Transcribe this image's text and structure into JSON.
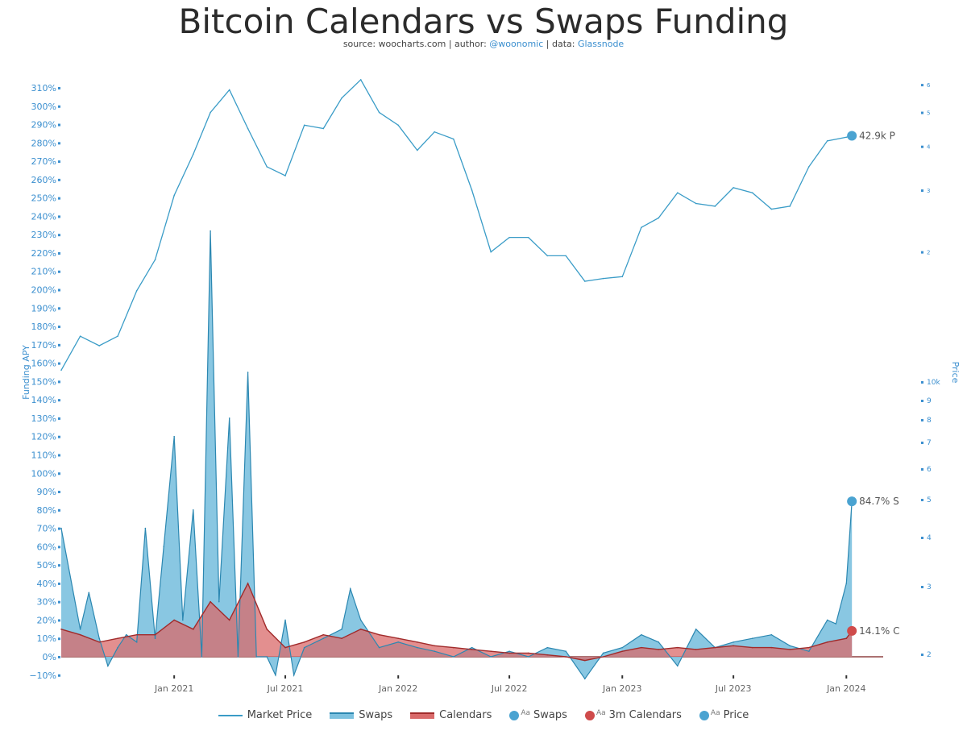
{
  "header": {
    "title": "Bitcoin Calendars vs Swaps Funding",
    "source_prefix": "source: woocharts.com | author: ",
    "author": "@woonomic",
    "data_prefix": " | data: ",
    "data_source": "Glassnode"
  },
  "colors": {
    "price": "#3a9cc7",
    "swaps_fill": "#7cc1df",
    "swaps_line": "#2b87b1",
    "calendars_fill": "#d96a6a",
    "calendars_line": "#a12b2b",
    "overlap": "#9a6a78",
    "axis_text": "#3b8fcf"
  },
  "chart_data": {
    "type": "line",
    "title": "Bitcoin Calendars vs Swaps Funding",
    "ylabel_left": "Funding APY",
    "ylabel_right": "Price",
    "x_ticks": [
      "Jan 2021",
      "Jul 2021",
      "Jan 2022",
      "Jul 2022",
      "Jan 2023",
      "Jul 2023",
      "Jan 2024"
    ],
    "x_tick_dates": [
      "2021-01-01",
      "2021-07-01",
      "2022-01-01",
      "2022-07-01",
      "2023-01-01",
      "2023-07-01",
      "2024-01-01"
    ],
    "x_range": [
      "2020-07-01",
      "2024-03-01"
    ],
    "left_axis_ticks": [
      "310%",
      "300%",
      "290%",
      "280%",
      "270%",
      "260%",
      "250%",
      "240%",
      "230%",
      "220%",
      "210%",
      "200%",
      "190%",
      "180%",
      "170%",
      "160%",
      "150%",
      "140%",
      "130%",
      "120%",
      "110%",
      "100%",
      "90%",
      "80%",
      "70%",
      "60%",
      "50%",
      "40%",
      "30%",
      "20%",
      "10%",
      "0%",
      "−10%"
    ],
    "left_ylim": [
      -10,
      314
    ],
    "right_axis_upper_ticks": [
      "6",
      "5",
      "4",
      "3",
      "2"
    ],
    "right_axis_lower_ticks": [
      "10k",
      "9",
      "8",
      "7",
      "6",
      "5",
      "4",
      "3",
      "2"
    ],
    "grid": false,
    "legend_position": "bottom",
    "legend": [
      "Market Price",
      "Swaps",
      "Calendars",
      "Swaps",
      "3m Calendars",
      "Price"
    ],
    "annotations": {
      "price_last": "42.9k P",
      "swaps_last": "84.7% S",
      "calendars_last": "14.1% C"
    },
    "series": [
      {
        "name": "Market Price",
        "kind": "line",
        "axis": "right-log",
        "x": [
          "2020-07-01",
          "2020-08-01",
          "2020-09-01",
          "2020-10-01",
          "2020-11-01",
          "2020-12-01",
          "2021-01-01",
          "2021-02-01",
          "2021-03-01",
          "2021-04-01",
          "2021-05-01",
          "2021-06-01",
          "2021-07-01",
          "2021-08-01",
          "2021-09-01",
          "2021-10-01",
          "2021-11-01",
          "2021-12-01",
          "2022-01-01",
          "2022-02-01",
          "2022-03-01",
          "2022-04-01",
          "2022-05-01",
          "2022-06-01",
          "2022-07-01",
          "2022-08-01",
          "2022-09-01",
          "2022-10-01",
          "2022-11-01",
          "2022-12-01",
          "2023-01-01",
          "2023-02-01",
          "2023-03-01",
          "2023-04-01",
          "2023-05-01",
          "2023-06-01",
          "2023-07-01",
          "2023-08-01",
          "2023-09-01",
          "2023-10-01",
          "2023-11-01",
          "2023-12-01",
          "2024-01-01",
          "2024-01-10"
        ],
        "values": [
          9200,
          11500,
          10800,
          11500,
          15500,
          19000,
          29000,
          38000,
          50000,
          58000,
          45000,
          35000,
          33000,
          46000,
          45000,
          55000,
          62000,
          50000,
          46000,
          39000,
          44000,
          42000,
          30000,
          20000,
          22000,
          22000,
          19500,
          19500,
          16500,
          16800,
          17000,
          23500,
          25000,
          29500,
          27500,
          27000,
          30500,
          29500,
          26500,
          27000,
          35000,
          41500,
          42500,
          42900
        ]
      },
      {
        "name": "Swaps",
        "kind": "area",
        "axis": "left",
        "x": [
          "2020-07-01",
          "2020-08-01",
          "2020-08-15",
          "2020-09-01",
          "2020-09-15",
          "2020-10-01",
          "2020-10-15",
          "2020-11-01",
          "2020-11-15",
          "2020-12-01",
          "2020-12-15",
          "2021-01-01",
          "2021-01-15",
          "2021-02-01",
          "2021-02-15",
          "2021-03-01",
          "2021-03-15",
          "2021-04-01",
          "2021-04-15",
          "2021-05-01",
          "2021-05-15",
          "2021-06-01",
          "2021-06-15",
          "2021-07-01",
          "2021-07-15",
          "2021-08-01",
          "2021-09-01",
          "2021-10-01",
          "2021-10-15",
          "2021-11-01",
          "2021-12-01",
          "2022-01-01",
          "2022-02-01",
          "2022-03-01",
          "2022-04-01",
          "2022-05-01",
          "2022-06-01",
          "2022-07-01",
          "2022-08-01",
          "2022-09-01",
          "2022-10-01",
          "2022-11-01",
          "2022-12-01",
          "2023-01-01",
          "2023-02-01",
          "2023-03-01",
          "2023-04-01",
          "2023-05-01",
          "2023-06-01",
          "2023-07-01",
          "2023-08-01",
          "2023-09-01",
          "2023-10-01",
          "2023-11-01",
          "2023-12-01",
          "2023-12-15",
          "2024-01-01",
          "2024-01-10"
        ],
        "values": [
          70,
          15,
          35,
          10,
          -5,
          5,
          12,
          8,
          70,
          10,
          60,
          120,
          20,
          80,
          0,
          232,
          30,
          130,
          0,
          155,
          0,
          0,
          -10,
          20,
          -10,
          5,
          10,
          15,
          37,
          20,
          5,
          8,
          5,
          3,
          0,
          5,
          0,
          3,
          0,
          5,
          3,
          -12,
          2,
          5,
          12,
          8,
          -5,
          15,
          5,
          8,
          10,
          12,
          6,
          3,
          20,
          18,
          40,
          84.7
        ]
      },
      {
        "name": "Calendars",
        "kind": "area",
        "axis": "left",
        "x": [
          "2020-07-01",
          "2020-08-01",
          "2020-09-01",
          "2020-10-01",
          "2020-11-01",
          "2020-12-01",
          "2021-01-01",
          "2021-02-01",
          "2021-03-01",
          "2021-04-01",
          "2021-05-01",
          "2021-06-01",
          "2021-07-01",
          "2021-08-01",
          "2021-09-01",
          "2021-10-01",
          "2021-11-01",
          "2021-12-01",
          "2022-01-01",
          "2022-02-01",
          "2022-03-01",
          "2022-04-01",
          "2022-05-01",
          "2022-06-01",
          "2022-07-01",
          "2022-08-01",
          "2022-09-01",
          "2022-10-01",
          "2022-11-01",
          "2022-12-01",
          "2023-01-01",
          "2023-02-01",
          "2023-03-01",
          "2023-04-01",
          "2023-05-01",
          "2023-06-01",
          "2023-07-01",
          "2023-08-01",
          "2023-09-01",
          "2023-10-01",
          "2023-11-01",
          "2023-12-01",
          "2024-01-01",
          "2024-01-10"
        ],
        "values": [
          15,
          12,
          8,
          10,
          12,
          12,
          20,
          15,
          30,
          20,
          40,
          15,
          5,
          8,
          12,
          10,
          15,
          12,
          10,
          8,
          6,
          5,
          4,
          3,
          2,
          2,
          1,
          0,
          -2,
          0,
          3,
          5,
          4,
          5,
          4,
          5,
          6,
          5,
          5,
          4,
          5,
          8,
          10,
          14.1
        ]
      }
    ]
  },
  "legend": {
    "market_price": "Market Price",
    "swaps": "Swaps",
    "calendars": "Calendars",
    "swaps_label": "Swaps",
    "calendars_label": "3m Calendars",
    "price_label": "Price",
    "aa": "Aa"
  }
}
